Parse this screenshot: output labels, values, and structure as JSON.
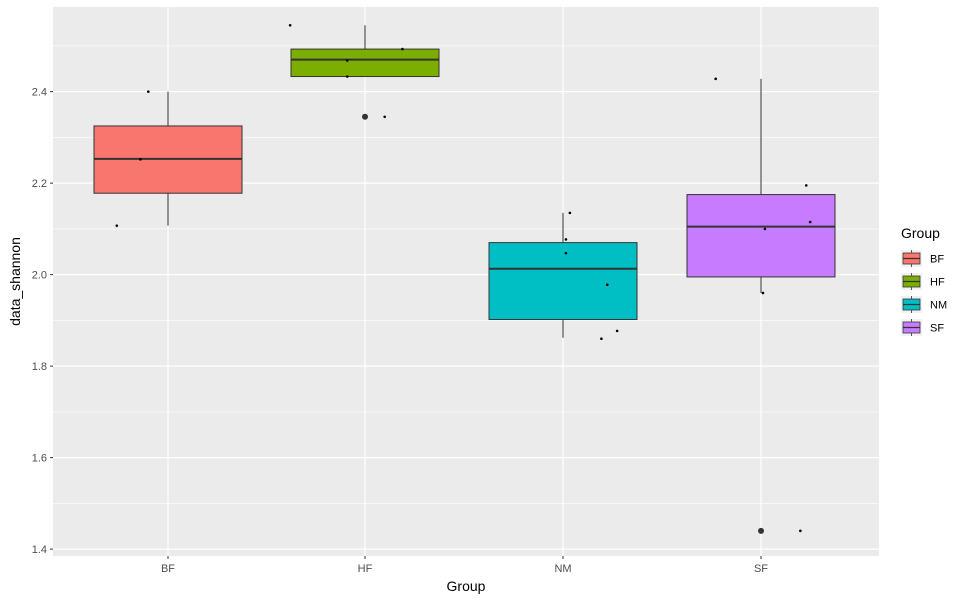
{
  "chart_data": {
    "type": "boxplot",
    "xlabel": "Group",
    "ylabel": "data_shannon",
    "ylim": [
      1.385,
      2.585
    ],
    "y_ticks": [
      1.4,
      1.6,
      1.8,
      2.0,
      2.2,
      2.4
    ],
    "y_tick_labels": [
      "1.4",
      "1.6",
      "1.8",
      "2.0",
      "2.2",
      "2.4"
    ],
    "grid": true,
    "panel_background": "#ebebeb",
    "categories": [
      "BF",
      "HF",
      "NM",
      "SF"
    ],
    "colors": [
      "#f8766d",
      "#7cae00",
      "#00bfc4",
      "#c77cff"
    ],
    "legend": {
      "title": "Group",
      "position": "right",
      "entries": [
        "BF",
        "HF",
        "NM",
        "SF"
      ]
    },
    "boxes": [
      {
        "group": "BF",
        "whisker_low": 2.107,
        "q1": 2.178,
        "median": 2.253,
        "q3": 2.325,
        "whisker_high": 2.4,
        "outliers": []
      },
      {
        "group": "HF",
        "whisker_low": 2.433,
        "q1": 2.433,
        "median": 2.47,
        "q3": 2.493,
        "whisker_high": 2.545,
        "outliers": [
          2.345
        ]
      },
      {
        "group": "NM",
        "whisker_low": 1.862,
        "q1": 1.902,
        "median": 2.013,
        "q3": 2.07,
        "whisker_high": 2.135,
        "outliers": []
      },
      {
        "group": "SF",
        "whisker_low": 1.96,
        "q1": 1.995,
        "median": 2.105,
        "q3": 2.175,
        "whisker_high": 2.428,
        "outliers": [
          1.44
        ]
      }
    ],
    "jitter_points": [
      {
        "group": "BF",
        "x": 0.74,
        "y": 2.107
      },
      {
        "group": "BF",
        "x": 0.86,
        "y": 2.252
      },
      {
        "group": "BF",
        "x": 0.9,
        "y": 2.4
      },
      {
        "group": "HF",
        "x": 1.62,
        "y": 2.545
      },
      {
        "group": "HF",
        "x": 1.91,
        "y": 2.433
      },
      {
        "group": "HF",
        "x": 1.91,
        "y": 2.468
      },
      {
        "group": "HF",
        "x": 2.1,
        "y": 2.345
      },
      {
        "group": "HF",
        "x": 2.19,
        "y": 2.493
      },
      {
        "group": "NM",
        "x": 3.02,
        "y": 2.047
      },
      {
        "group": "NM",
        "x": 3.02,
        "y": 2.077
      },
      {
        "group": "NM",
        "x": 3.04,
        "y": 2.135
      },
      {
        "group": "NM",
        "x": 3.2,
        "y": 1.86
      },
      {
        "group": "NM",
        "x": 3.23,
        "y": 1.978
      },
      {
        "group": "NM",
        "x": 3.28,
        "y": 1.877
      },
      {
        "group": "SF",
        "x": 3.78,
        "y": 2.428
      },
      {
        "group": "SF",
        "x": 4.02,
        "y": 1.96
      },
      {
        "group": "SF",
        "x": 4.03,
        "y": 2.1
      },
      {
        "group": "SF",
        "x": 4.21,
        "y": 1.44
      },
      {
        "group": "SF",
        "x": 4.24,
        "y": 2.195
      },
      {
        "group": "SF",
        "x": 4.26,
        "y": 2.115
      }
    ]
  }
}
